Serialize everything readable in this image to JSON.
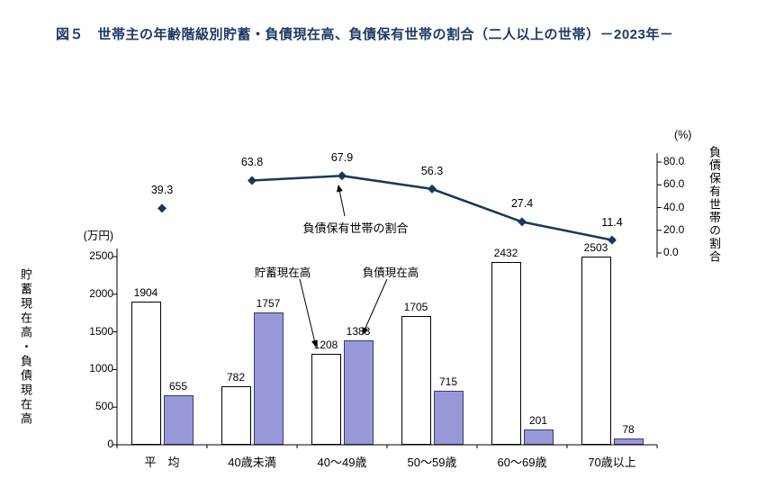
{
  "title": "図５　世帯主の年齢階級別貯蓄・負債現在高、負債保有世帯の割合（二人以上の世帯）－2023年－",
  "left_axis": {
    "unit_label": "(万円)",
    "title": "貯蓄現在高・負債現在高",
    "ticks": [
      0,
      500,
      1000,
      1500,
      2000,
      2500
    ]
  },
  "right_axis": {
    "unit_label": "(%)",
    "title": "負債保有世帯の割合",
    "ticks": [
      "0.0",
      "20.0",
      "40.0",
      "60.0",
      "80.0"
    ]
  },
  "annotations": {
    "line_label": "負債保有世帯の割合",
    "savings_label": "貯蓄現在高",
    "liabilities_label": "負債現在高"
  },
  "colors": {
    "title_text": "#1f3864",
    "savings_bar_fill": "#ffffff",
    "liabilities_bar_fill": "#9898d8",
    "line": "#17375e"
  },
  "chart_data": {
    "type": "bar+line",
    "categories": [
      "平　均",
      "40歳未満",
      "40～49歳",
      "50～59歳",
      "60～69歳",
      "70歳以上"
    ],
    "series": [
      {
        "name": "貯蓄現在高",
        "type": "bar",
        "axis": "left",
        "values": [
          1904,
          782,
          1208,
          1705,
          2432,
          2503
        ]
      },
      {
        "name": "負債現在高",
        "type": "bar",
        "axis": "left",
        "values": [
          655,
          1757,
          1388,
          715,
          201,
          78
        ]
      },
      {
        "name": "負債保有世帯の割合",
        "type": "line",
        "axis": "right",
        "values": [
          39.3,
          63.8,
          67.9,
          56.3,
          27.4,
          11.4
        ],
        "first_point_detached": true
      }
    ],
    "xlabel": "",
    "ylabel_left": "貯蓄現在高・負債現在高",
    "ylabel_right": "負債保有世帯の割合",
    "ylim_left": [
      0,
      2500
    ],
    "ylim_right": [
      0,
      80
    ],
    "grid": false,
    "legend": "annotated-with-arrows"
  }
}
